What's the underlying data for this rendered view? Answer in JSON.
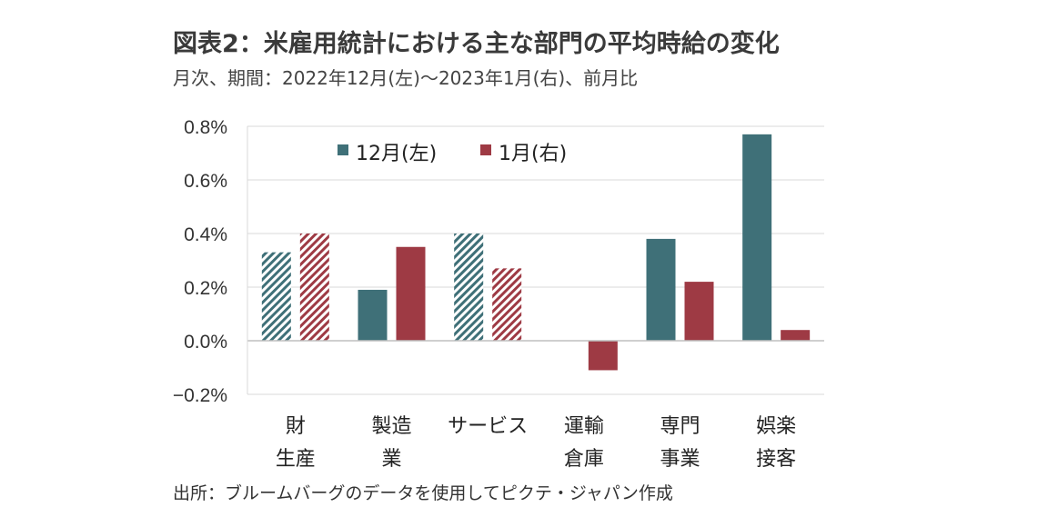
{
  "header": {
    "title": "図表2：米雇用統計における主な部門の平均時給の変化",
    "subtitle": "月次、期間：2022年12月(左)～2023年1月(右)、前月比"
  },
  "footer": {
    "source": "出所：ブルームバーグのデータを使用してピクテ・ジャパン作成"
  },
  "chart_data": {
    "type": "bar",
    "categories": [
      [
        "財",
        "生産"
      ],
      [
        "製造",
        "業"
      ],
      [
        "サービス"
      ],
      [
        "運輸",
        "倉庫"
      ],
      [
        "専門",
        "事業"
      ],
      [
        "娯楽",
        "接客"
      ]
    ],
    "series": [
      {
        "name": "12月(左)",
        "color": "#3f7078",
        "values": [
          0.33,
          0.19,
          0.4,
          0.0,
          0.38,
          0.77
        ]
      },
      {
        "name": "1月(右)",
        "color": "#9e3a44",
        "values": [
          0.4,
          0.35,
          0.27,
          -0.11,
          0.22,
          0.04
        ]
      }
    ],
    "hatched_categories": [
      0,
      2
    ],
    "yticks": [
      "0.8%",
      "0.6%",
      "0.4%",
      "0.2%",
      "0.0%",
      "−0.2%"
    ],
    "ytick_values": [
      0.8,
      0.6,
      0.4,
      0.2,
      0.0,
      -0.2
    ],
    "ylim": [
      -0.2,
      0.8
    ],
    "grid": true,
    "legend_position": "top-left"
  }
}
